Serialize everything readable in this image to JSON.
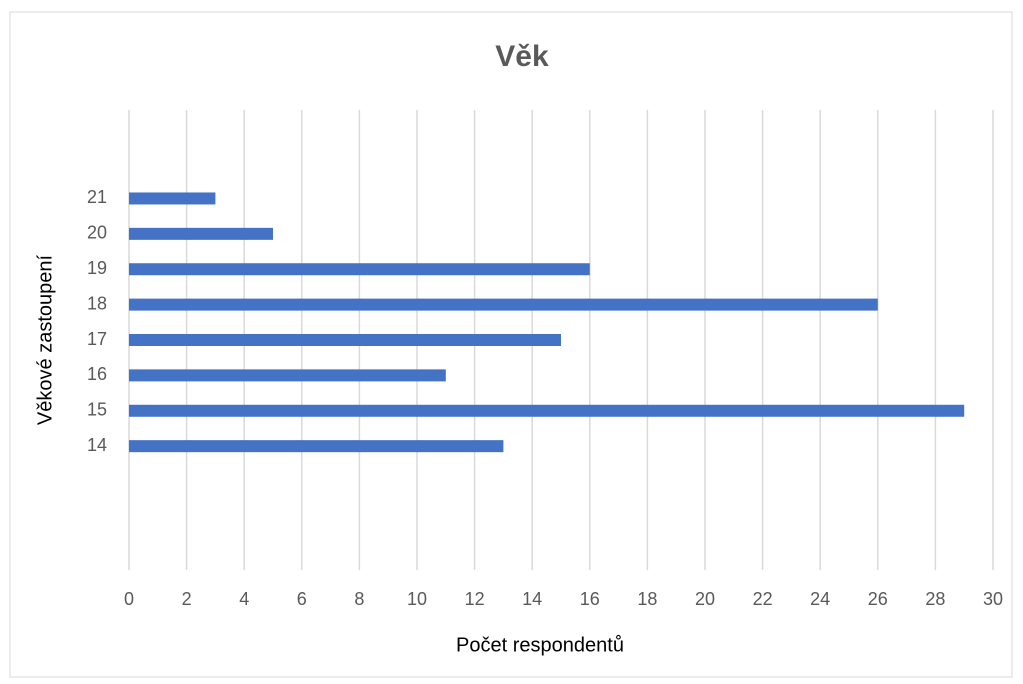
{
  "chart_data": {
    "type": "bar",
    "orientation": "horizontal",
    "title": "Věk",
    "x_label": "Počet respondentů",
    "y_label": "Věkové zastoupení",
    "categories": [
      null,
      null,
      null,
      "14",
      "15",
      "16",
      "17",
      "18",
      "19",
      "20",
      "21",
      null,
      null
    ],
    "values": [
      null,
      null,
      null,
      13,
      29,
      11,
      15,
      26,
      16,
      5,
      3,
      null,
      null
    ],
    "color": "#4472c4",
    "xlim": [
      0,
      30
    ],
    "xticks": [
      0,
      2,
      4,
      6,
      8,
      10,
      12,
      14,
      16,
      18,
      20,
      22,
      24,
      26,
      28,
      30
    ],
    "grid": true
  }
}
